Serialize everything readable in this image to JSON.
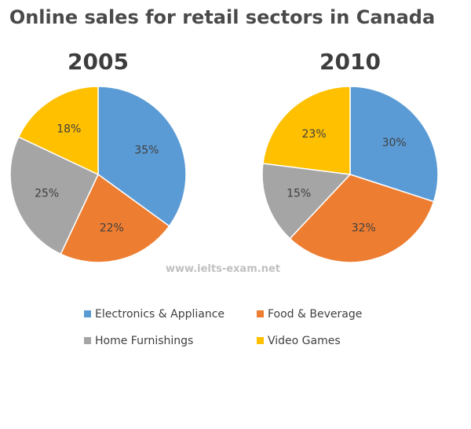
{
  "chart_data": {
    "type": "pie",
    "title": "Online sales for retail sectors in Canada",
    "watermark": "www.ielts-exam.net",
    "categories": [
      "Electronics & Appliance",
      "Food & Beverage",
      "Home Furnishings",
      "Video Games"
    ],
    "colors": {
      "Electronics & Appliance": "#5b9bd5",
      "Food & Beverage": "#ed7d31",
      "Home Furnishings": "#a5a5a5",
      "Video Games": "#ffc000"
    },
    "pies": [
      {
        "name": "2005",
        "values": [
          35,
          22,
          25,
          18
        ],
        "labels": [
          "35%",
          "22%",
          "25%",
          "18%"
        ]
      },
      {
        "name": "2010",
        "values": [
          30,
          32,
          15,
          23
        ],
        "labels": [
          "30%",
          "32%",
          "15%",
          "23%"
        ]
      }
    ],
    "legend": {
      "placement": "bottom",
      "items": [
        "Electronics & Appliance",
        "Food & Beverage",
        "Home Furnishings",
        "Video Games"
      ]
    }
  }
}
